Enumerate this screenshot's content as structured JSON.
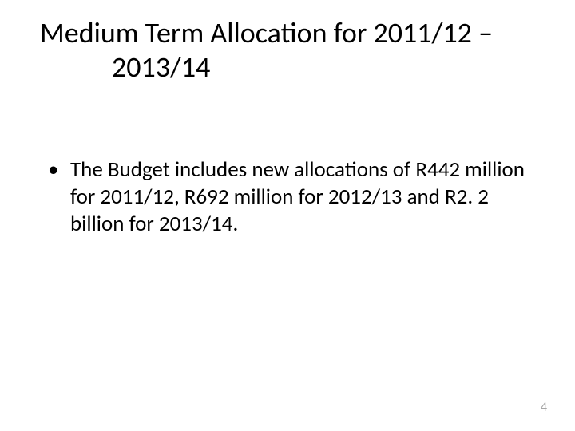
{
  "slide": {
    "title_line1": "Medium Term Allocation for 2011/12 –",
    "title_line2": "2013/14",
    "bullet_text": "The Budget includes new allocations of R442 million for 2011/12, R692 million for 2012/13 and R2. 2 billion for 2013/14.",
    "page_number": "4"
  },
  "styling": {
    "background_color": "#ffffff",
    "title_fontsize": 36,
    "title_color": "#000000",
    "body_fontsize": 27,
    "body_color": "#000000",
    "page_number_color": "#a6a6a6",
    "page_number_fontsize": 16,
    "font_family": "Calibri"
  }
}
